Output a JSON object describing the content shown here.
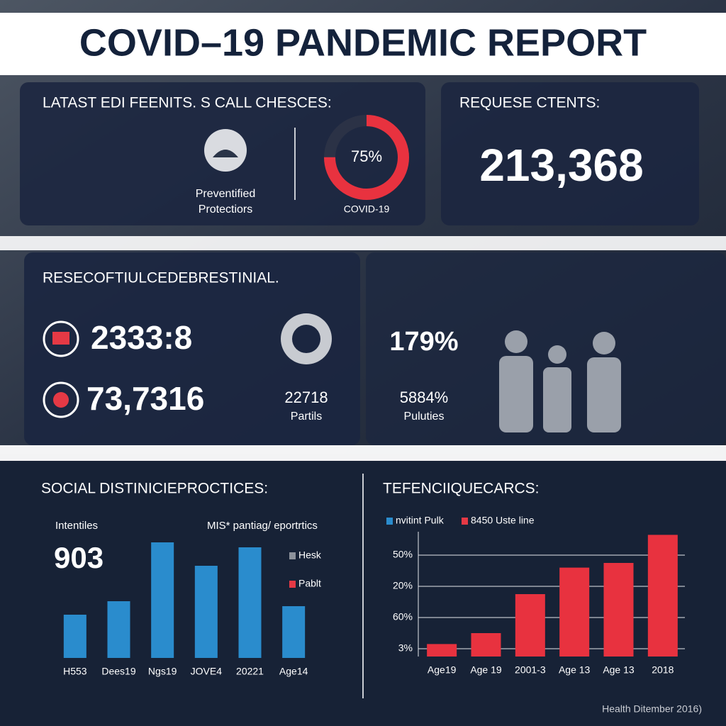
{
  "header": {
    "title": "COVID–19 PANDEMIC REPORT"
  },
  "panel1": {
    "title": "LATAST EDI FEENITS. S CALL CHESCES:",
    "icon_label": [
      "Preventified",
      "Protectiors"
    ],
    "donut": {
      "value": 75,
      "value_label": "75%",
      "label": "COVID-19"
    }
  },
  "panel2": {
    "title": "REQUESE CTENTS:",
    "value": "213,368"
  },
  "panel3": {
    "title": "RESECOFTIULCEDEBRESTINIAL.",
    "stats": [
      "2333:8",
      "73,7316"
    ],
    "side_value": "22718",
    "side_label": "Partils"
  },
  "panel4": {
    "value": "179%",
    "sub_value": "5884%",
    "sub_label": "Puluties"
  },
  "chart_data": [
    {
      "type": "bar",
      "title": "SOCIAL DISTINICIEPROCTICES:",
      "subtitle": "MIS* pantiag/ eportrtics",
      "annotation_label": "Intentiles",
      "annotation_value": "903",
      "categories": [
        "H553",
        "Dees19",
        "Ngs19",
        "JOVE4",
        "20221",
        "Age14"
      ],
      "values": [
        61,
        80,
        163,
        130,
        156,
        73
      ],
      "color": "#2a8ccd",
      "ylim": [
        0,
        170
      ],
      "legend": [
        {
          "name": "Hesk",
          "color": "#8d929b"
        },
        {
          "name": "Pablt",
          "color": "#e53945"
        }
      ]
    },
    {
      "type": "bar",
      "title": "TEFENCIIQUECARCS:",
      "categories": [
        "Age19",
        "Age 19",
        "2001-3",
        "Age 13",
        "Age 13",
        "2018"
      ],
      "values": [
        0.4,
        0.75,
        2,
        2.85,
        3,
        3.9
      ],
      "color": "#e8323f",
      "ylim": [
        0,
        4
      ],
      "yticks": [
        {
          "value": 0.25,
          "label": "3%"
        },
        {
          "value": 1.25,
          "label": "60%"
        },
        {
          "value": 2.25,
          "label": "20%"
        },
        {
          "value": 3.25,
          "label": "50%"
        }
      ],
      "grid": true,
      "legend": [
        {
          "name": "nvitint Pulk",
          "color": "#2a8ccd"
        },
        {
          "name": "8450 Uste line",
          "color": "#e53945"
        }
      ]
    }
  ],
  "footer": "Health Ditember 2016)"
}
